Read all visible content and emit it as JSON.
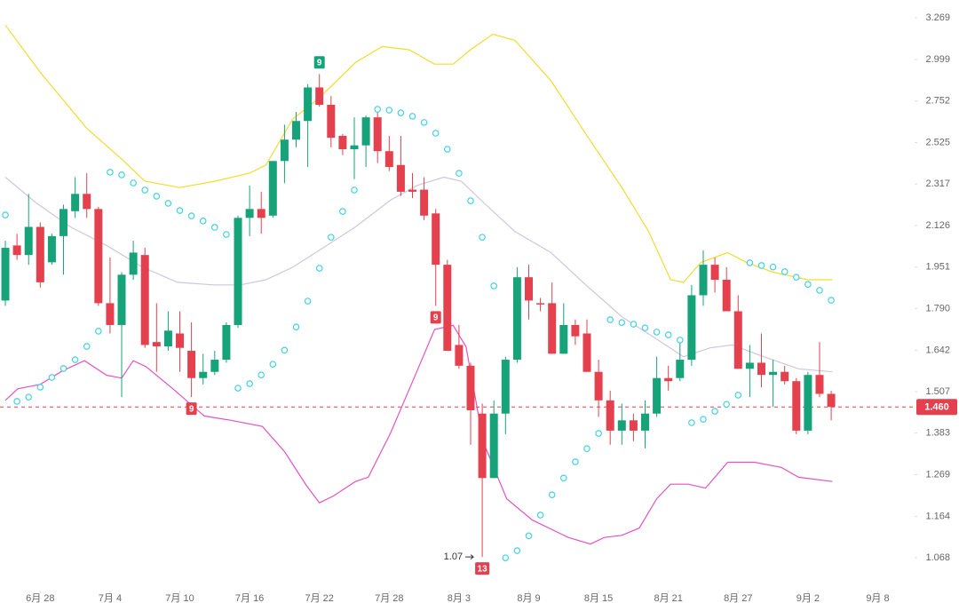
{
  "chart_data": {
    "type": "candlestick",
    "log_scale": true,
    "up_color": "#16a37a",
    "down_color": "#e5404e",
    "x": [
      0,
      1,
      2,
      3,
      4,
      5,
      6,
      7,
      8,
      9,
      10,
      11,
      12,
      13,
      14,
      15,
      16,
      17,
      18,
      19,
      20,
      21,
      22,
      23,
      24,
      25,
      26,
      27,
      28,
      29,
      30,
      31,
      32,
      33,
      34,
      35,
      36,
      37,
      38,
      39,
      40,
      41,
      42,
      43,
      44,
      45,
      46,
      47,
      48,
      49,
      50,
      51,
      52,
      53,
      54,
      55,
      56,
      57,
      58,
      59,
      60,
      61,
      62,
      63,
      64,
      65,
      66,
      67,
      68,
      69,
      70,
      71
    ],
    "open": [
      1.82,
      2.04,
      2.0,
      2.12,
      1.97,
      2.08,
      2.19,
      2.27,
      2.2,
      1.81,
      1.73,
      1.92,
      2.0,
      1.67,
      1.655,
      1.7,
      1.64,
      1.55,
      1.57,
      1.61,
      1.73,
      2.16,
      2.2,
      2.17,
      2.43,
      2.54,
      2.64,
      2.83,
      2.73,
      2.56,
      2.49,
      2.51,
      2.66,
      2.48,
      2.41,
      2.29,
      2.29,
      2.18,
      1.96,
      1.66,
      1.59,
      1.44,
      1.26,
      1.44,
      1.61,
      1.91,
      1.81,
      1.81,
      1.63,
      1.73,
      1.7,
      1.57,
      1.48,
      1.39,
      1.42,
      1.39,
      1.44,
      1.55,
      1.55,
      1.61,
      1.84,
      1.96,
      1.9,
      1.78,
      1.58,
      1.6,
      1.56,
      1.57,
      1.54,
      1.39,
      1.56,
      1.5
    ],
    "high": [
      2.06,
      2.09,
      2.27,
      2.14,
      2.09,
      2.22,
      2.35,
      2.37,
      2.21,
      1.99,
      1.93,
      2.06,
      2.03,
      1.81,
      1.78,
      1.78,
      1.74,
      1.63,
      1.64,
      1.74,
      2.17,
      2.31,
      2.28,
      2.43,
      2.62,
      2.69,
      2.85,
      2.91,
      2.78,
      2.57,
      2.66,
      2.67,
      2.7,
      2.56,
      2.56,
      2.37,
      2.35,
      2.2,
      1.98,
      1.73,
      1.6,
      1.47,
      1.48,
      1.62,
      1.95,
      1.96,
      1.83,
      1.89,
      1.81,
      1.75,
      1.75,
      1.61,
      1.51,
      1.47,
      1.44,
      1.48,
      1.62,
      1.59,
      1.67,
      1.88,
      2.02,
      1.99,
      1.95,
      1.84,
      1.66,
      1.7,
      1.61,
      1.59,
      1.55,
      1.57,
      1.67,
      1.51
    ],
    "low": [
      1.8,
      1.98,
      1.96,
      1.87,
      1.96,
      1.92,
      2.16,
      2.16,
      1.8,
      1.7,
      1.49,
      1.9,
      1.65,
      1.57,
      1.64,
      1.57,
      1.49,
      1.53,
      1.56,
      1.6,
      1.72,
      2.08,
      2.09,
      2.16,
      2.32,
      2.5,
      2.4,
      2.72,
      2.5,
      2.46,
      2.34,
      2.4,
      2.42,
      2.38,
      2.26,
      2.25,
      2.15,
      1.8,
      1.64,
      1.58,
      1.35,
      1.07,
      1.26,
      1.38,
      1.6,
      1.75,
      1.78,
      1.63,
      1.63,
      1.66,
      1.57,
      1.43,
      1.35,
      1.35,
      1.36,
      1.34,
      1.43,
      1.51,
      1.54,
      1.59,
      1.8,
      1.85,
      1.78,
      1.58,
      1.49,
      1.52,
      1.46,
      1.53,
      1.38,
      1.38,
      1.49,
      1.42
    ],
    "close": [
      2.03,
      2.0,
      2.12,
      1.89,
      2.08,
      2.2,
      2.27,
      2.2,
      1.81,
      1.73,
      1.92,
      2.01,
      1.66,
      1.655,
      1.71,
      1.65,
      1.55,
      1.57,
      1.61,
      1.73,
      2.16,
      2.2,
      2.16,
      2.43,
      2.54,
      2.64,
      2.83,
      2.73,
      2.55,
      2.49,
      2.51,
      2.66,
      2.48,
      2.4,
      2.28,
      2.28,
      2.17,
      1.96,
      1.64,
      1.59,
      1.45,
      1.26,
      1.44,
      1.61,
      1.91,
      1.82,
      1.805,
      1.63,
      1.73,
      1.69,
      1.57,
      1.48,
      1.39,
      1.42,
      1.39,
      1.44,
      1.55,
      1.54,
      1.61,
      1.84,
      1.96,
      1.9,
      1.78,
      1.58,
      1.6,
      1.56,
      1.57,
      1.54,
      1.39,
      1.56,
      1.5,
      1.46
    ],
    "ylim": [
      0.998,
      3.392
    ],
    "yticks": [
      3.269,
      2.999,
      2.752,
      2.525,
      2.317,
      2.126,
      1.951,
      {
        "value": 1.79,
        "label": "1.790"
      },
      1.642,
      1.507,
      1.383,
      1.269,
      1.164,
      1.068
    ],
    "xlim": [
      -0.46,
      78.17
    ],
    "xticks": [
      {
        "value": 3,
        "label": "6月 28"
      },
      {
        "value": 9,
        "label": "7月 4"
      },
      {
        "value": 15,
        "label": "7月 10"
      },
      {
        "value": 21,
        "label": "7月 16"
      },
      {
        "value": 27,
        "label": "7月 22"
      },
      {
        "value": 33,
        "label": "7月 28"
      },
      {
        "value": 39,
        "label": "8月 3"
      },
      {
        "value": 45,
        "label": "8月 9"
      },
      {
        "value": 51,
        "label": "8月 15"
      },
      {
        "value": 57,
        "label": "8月 21"
      },
      {
        "value": 63,
        "label": "8月 27"
      },
      {
        "value": 69,
        "label": "9月 2"
      },
      {
        "value": 75,
        "label": "9月 8"
      }
    ],
    "lines": [
      {
        "color": "#f2dc2a",
        "x": [
          0,
          3,
          7,
          10,
          12,
          15,
          18,
          21,
          22.4,
          24.7,
          27,
          28.5,
          30.1,
          32.4,
          34.7,
          36.9,
          38.5,
          40,
          41.9,
          43.8,
          46.9,
          49.9,
          53,
          55.3,
          57.2,
          58.3,
          59.8,
          62.1,
          63.7,
          66,
          69,
          71.1
        ],
        "values": [
          3.22,
          2.92,
          2.6,
          2.44,
          2.33,
          2.3,
          2.33,
          2.37,
          2.41,
          2.65,
          2.77,
          2.87,
          2.98,
          3.08,
          3.06,
          2.97,
          2.97,
          3.06,
          3.16,
          3.12,
          2.87,
          2.57,
          2.3,
          2.1,
          1.9,
          1.89,
          1.97,
          2.01,
          1.97,
          1.93,
          1.9,
          1.9
        ]
      },
      {
        "color": "#cfc6dc",
        "x": [
          0,
          2.6,
          5.6,
          8.7,
          11.8,
          14.8,
          17.9,
          20.2,
          22.4,
          24.7,
          27,
          30.1,
          33.1,
          35.4,
          37.7,
          39.2,
          41.1,
          43.8,
          46.9,
          49.9,
          53,
          56,
          58.3,
          60.6,
          62.5,
          65.2,
          68.2,
          71.1
        ],
        "values": [
          2.35,
          2.23,
          2.12,
          2.04,
          1.95,
          1.89,
          1.88,
          1.88,
          1.9,
          1.95,
          2.02,
          2.12,
          2.24,
          2.31,
          2.35,
          2.33,
          2.23,
          2.1,
          2.01,
          1.88,
          1.76,
          1.68,
          1.62,
          1.65,
          1.66,
          1.62,
          1.58,
          1.57
        ]
      },
      {
        "color": "#e552c4",
        "x": [
          0,
          1.07,
          3,
          4.9,
          6.8,
          8.7,
          10,
          11,
          12.1,
          14.4,
          17.1,
          19.4,
          22.1,
          24,
          25.9,
          27,
          28.2,
          30.1,
          31.2,
          33.1,
          35.4,
          36.9,
          38.5,
          39.6,
          41.1,
          43.1,
          45.3,
          48.4,
          50.3,
          51.5,
          53,
          54.5,
          56,
          57.2,
          58.7,
          60.2,
          62.1,
          64.4,
          66.7,
          68.2,
          71.1
        ],
        "values": [
          1.48,
          1.516,
          1.53,
          1.573,
          1.607,
          1.559,
          1.55,
          1.607,
          1.587,
          1.516,
          1.433,
          1.42,
          1.402,
          1.331,
          1.24,
          1.197,
          1.214,
          1.251,
          1.262,
          1.382,
          1.573,
          1.714,
          1.729,
          1.654,
          1.357,
          1.207,
          1.155,
          1.114,
          1.099,
          1.114,
          1.119,
          1.136,
          1.207,
          1.244,
          1.244,
          1.234,
          1.302,
          1.302,
          1.288,
          1.262,
          1.251
        ]
      }
    ],
    "sar": {
      "color": "#3fd3e3",
      "values": [
        2.173,
        1.477,
        1.49,
        1.521,
        1.552,
        1.581,
        1.61,
        1.655,
        1.708,
        2.374,
        2.361,
        2.322,
        2.288,
        2.259,
        2.226,
        2.193,
        2.169,
        2.146,
        2.118,
        2.087,
        1.518,
        1.532,
        1.56,
        1.595,
        1.642,
        1.723,
        1.818,
        1.946,
        2.075,
        2.189,
        2.288,
        null,
        2.705,
        2.7,
        2.685,
        2.666,
        2.632,
        2.574,
        2.49,
        2.369,
        2.238,
        2.075,
        1.876,
        1.068,
        1.084,
        1.118,
        1.167,
        1.217,
        1.26,
        1.303,
        1.339,
        1.382,
        1.749,
        1.739,
        1.733,
        1.72,
        1.705,
        1.695,
        1.677,
        1.413,
        1.423,
        1.447,
        1.468,
        1.496,
        1.968,
        1.957,
        1.951,
        1.932,
        1.91,
        1.882,
        1.859,
        1.821
      ]
    },
    "markers": [
      {
        "index": 27,
        "label": "9",
        "color": "#16a37a",
        "position": "above"
      },
      {
        "index": 16,
        "label": "9",
        "color": "#e5404e",
        "position": "below"
      },
      {
        "index": 37,
        "label": "9",
        "color": "#e5404e",
        "position": "below"
      },
      {
        "index": 41,
        "label": "13",
        "color": "#e5404e",
        "position": "below"
      }
    ],
    "min_marker": {
      "index": 41,
      "value": 1.07
    },
    "last_price": {
      "value": 1.46,
      "label": "1.460",
      "color": "#e5404e"
    }
  }
}
